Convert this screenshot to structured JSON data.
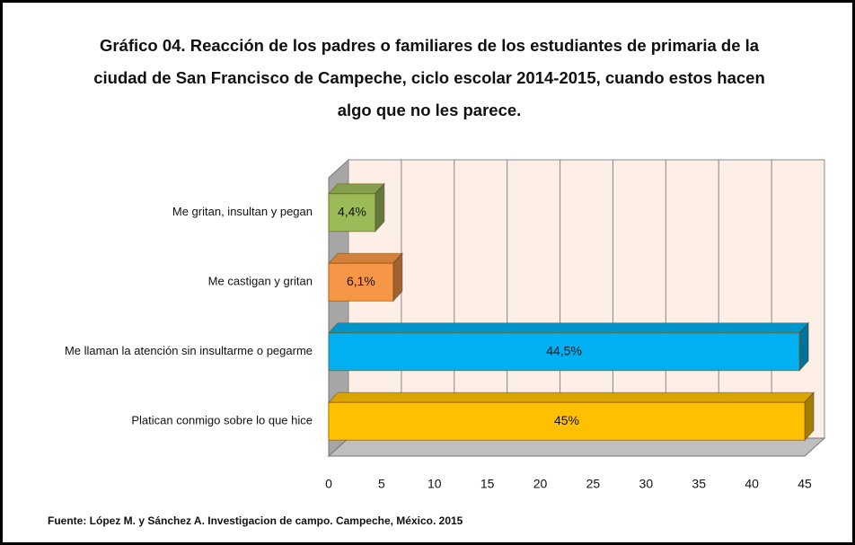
{
  "chart_data": {
    "type": "bar3d",
    "title": "Gráfico 04. Reacción de los padres o familiares de los estudiantes de primaria de la ciudad de San Francisco de  Campeche, ciclo escolar 2014-2015, cuando estos hacen algo que no les parece.",
    "categories": [
      "Me gritan, insultan y pegan",
      "Me castigan y gritan",
      "Me llaman la atención sin insultarme o pegarme",
      "Platican conmigo sobre lo que hice"
    ],
    "values": [
      4.4,
      6.1,
      44.5,
      45
    ],
    "value_labels": [
      "4,4%",
      "6,1%",
      "44,5%",
      "45%"
    ],
    "colors": [
      "#9bbb59",
      "#f79646",
      "#00b0f0",
      "#ffc000"
    ],
    "xlim": [
      0,
      45
    ],
    "xticks": [
      0,
      5,
      10,
      15,
      20,
      25,
      30,
      35,
      40,
      45
    ],
    "grid": true,
    "source": "Fuente: López M. y  Sánchez A.  Investigacion de campo. Campeche, México. 2015"
  }
}
